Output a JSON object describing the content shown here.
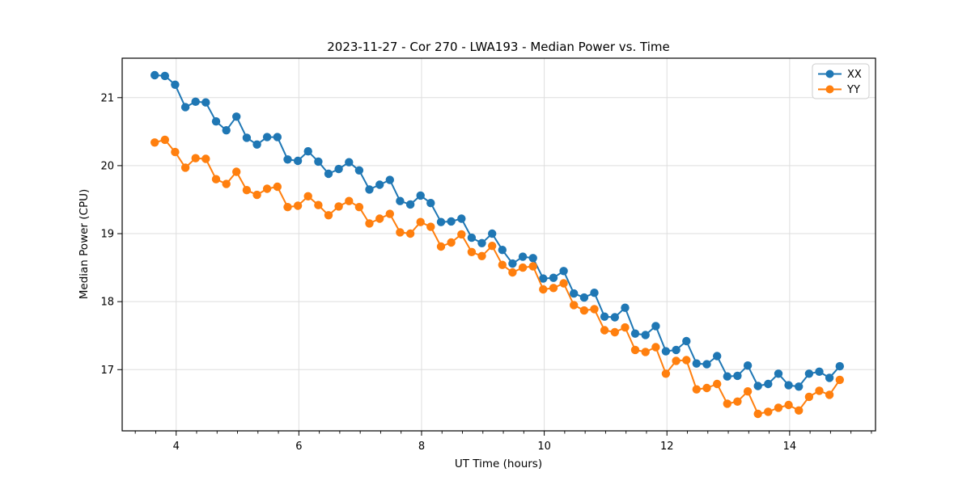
{
  "chart_data": {
    "type": "line",
    "title": "2023-11-27 - Cor 270 - LWA193 - Median Power vs. Time",
    "xlabel": "UT Time (hours)",
    "ylabel": "Median Power (CPU)",
    "xlim": [
      3.12,
      15.4
    ],
    "ylim": [
      16.1,
      21.58
    ],
    "xticks": [
      4,
      6,
      8,
      10,
      12,
      14
    ],
    "yticks": [
      17,
      18,
      19,
      20,
      21
    ],
    "x_minor_step": 0.33333,
    "grid": true,
    "legend_position": "upper right",
    "marker": "o",
    "x": [
      3.65,
      3.817,
      3.983,
      4.15,
      4.317,
      4.483,
      4.65,
      4.817,
      4.983,
      5.15,
      5.317,
      5.483,
      5.65,
      5.817,
      5.983,
      6.15,
      6.317,
      6.483,
      6.65,
      6.817,
      6.983,
      7.15,
      7.317,
      7.483,
      7.65,
      7.817,
      7.983,
      8.15,
      8.317,
      8.483,
      8.65,
      8.817,
      8.983,
      9.15,
      9.317,
      9.483,
      9.65,
      9.817,
      9.983,
      10.15,
      10.317,
      10.483,
      10.65,
      10.817,
      10.983,
      11.15,
      11.317,
      11.483,
      11.65,
      11.817,
      11.983,
      12.15,
      12.317,
      12.483,
      12.65,
      12.817,
      12.983,
      13.15,
      13.317,
      13.483,
      13.65,
      13.817,
      13.983,
      14.15,
      14.317,
      14.483,
      14.65,
      14.817
    ],
    "series": [
      {
        "name": "XX",
        "color": "#1f77b4",
        "values": [
          21.33,
          21.32,
          21.19,
          20.86,
          20.94,
          20.93,
          20.65,
          20.52,
          20.72,
          20.41,
          20.31,
          20.42,
          20.42,
          20.09,
          20.07,
          20.21,
          20.06,
          19.88,
          19.95,
          20.05,
          19.93,
          19.65,
          19.72,
          19.79,
          19.48,
          19.43,
          19.56,
          19.45,
          19.17,
          19.18,
          19.22,
          18.94,
          18.86,
          19.0,
          18.76,
          18.56,
          18.66,
          18.64,
          18.34,
          18.35,
          18.45,
          18.12,
          18.06,
          18.13,
          17.78,
          17.77,
          17.91,
          17.53,
          17.51,
          17.64,
          17.27,
          17.29,
          17.42,
          17.09,
          17.08,
          17.2,
          16.9,
          16.91,
          17.06,
          16.76,
          16.79,
          16.94,
          16.77,
          16.75,
          16.94,
          16.97,
          16.88,
          17.05
        ]
      },
      {
        "name": "YY",
        "color": "#ff7f0e",
        "values": [
          20.34,
          20.38,
          20.2,
          19.97,
          20.11,
          20.1,
          19.8,
          19.73,
          19.91,
          19.64,
          19.57,
          19.66,
          19.69,
          19.39,
          19.41,
          19.55,
          19.42,
          19.27,
          19.4,
          19.48,
          19.39,
          19.15,
          19.22,
          19.29,
          19.02,
          19.0,
          19.17,
          19.1,
          18.81,
          18.87,
          18.99,
          18.73,
          18.67,
          18.82,
          18.54,
          18.43,
          18.5,
          18.52,
          18.18,
          18.2,
          18.27,
          17.95,
          17.87,
          17.89,
          17.58,
          17.55,
          17.62,
          17.29,
          17.26,
          17.33,
          16.94,
          17.13,
          17.14,
          16.71,
          16.73,
          16.79,
          16.5,
          16.53,
          16.68,
          16.35,
          16.38,
          16.44,
          16.48,
          16.4,
          16.6,
          16.69,
          16.63,
          16.85
        ]
      }
    ],
    "style": {
      "grid_color": "#dedede",
      "spine_color": "#000000",
      "background": "#ffffff"
    }
  }
}
